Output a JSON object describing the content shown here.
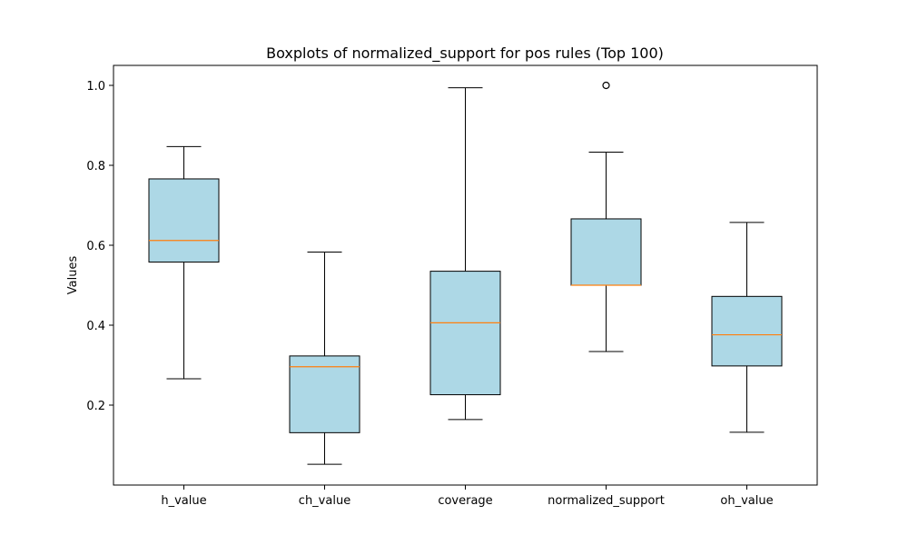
{
  "chart_data": {
    "type": "boxplot",
    "title": "Boxplots of normalized_support for pos rules (Top 100)",
    "xlabel": "",
    "ylabel": "Values",
    "ylim": [
      0.0,
      1.05
    ],
    "yticks": [
      "0.2",
      "0.4",
      "0.6",
      "0.8",
      "1.0"
    ],
    "grid": false,
    "box_fill": "#add8e6",
    "median_color": "#ff7f0e",
    "categories": [
      "h_value",
      "ch_value",
      "coverage",
      "normalized_support",
      "oh_value"
    ],
    "boxes": [
      {
        "name": "h_value",
        "whisker_low": 0.266,
        "q1": 0.558,
        "median": 0.612,
        "q3": 0.766,
        "whisker_high": 0.847,
        "outliers": []
      },
      {
        "name": "ch_value",
        "whisker_low": 0.052,
        "q1": 0.131,
        "median": 0.296,
        "q3": 0.323,
        "whisker_high": 0.583,
        "outliers": []
      },
      {
        "name": "coverage",
        "whisker_low": 0.164,
        "q1": 0.226,
        "median": 0.406,
        "q3": 0.535,
        "whisker_high": 0.994,
        "outliers": []
      },
      {
        "name": "normalized_support",
        "whisker_low": 0.334,
        "q1": 0.5,
        "median": 0.5,
        "q3": 0.666,
        "whisker_high": 0.833,
        "outliers": [
          1.0
        ]
      },
      {
        "name": "oh_value",
        "whisker_low": 0.132,
        "q1": 0.298,
        "median": 0.376,
        "q3": 0.472,
        "whisker_high": 0.657,
        "outliers": []
      }
    ]
  }
}
